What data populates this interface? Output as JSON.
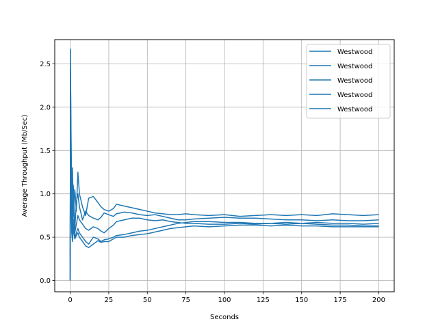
{
  "chart_data": {
    "type": "line",
    "title": "",
    "xlabel": "Seconds",
    "ylabel": "Average Throughput (Mb/Sec)",
    "xlim": [
      -10,
      210
    ],
    "ylim": [
      -0.13,
      2.78
    ],
    "xticks": [
      0,
      25,
      50,
      75,
      100,
      125,
      150,
      175,
      200
    ],
    "yticks": [
      0.0,
      0.5,
      1.0,
      1.5,
      2.0,
      2.5
    ],
    "grid": true,
    "legend_position": "top-right",
    "line_color": "#1f77b4",
    "series": [
      {
        "name": "Westwood",
        "x": [
          0,
          0.2,
          0.5,
          1,
          1.5,
          2,
          3,
          4,
          5,
          6,
          8,
          10,
          12,
          15,
          18,
          20,
          22,
          25,
          28,
          30,
          35,
          40,
          45,
          50,
          55,
          60,
          65,
          70,
          75,
          80,
          90,
          100,
          110,
          120,
          130,
          140,
          150,
          160,
          170,
          180,
          190,
          200
        ],
        "y": [
          0.0,
          2.67,
          1.6,
          0.9,
          1.3,
          0.75,
          1.05,
          0.8,
          1.25,
          1.0,
          0.85,
          0.75,
          0.95,
          0.97,
          0.9,
          0.85,
          0.82,
          0.8,
          0.83,
          0.88,
          0.86,
          0.84,
          0.82,
          0.8,
          0.78,
          0.77,
          0.76,
          0.76,
          0.77,
          0.76,
          0.75,
          0.76,
          0.74,
          0.75,
          0.76,
          0.75,
          0.76,
          0.75,
          0.77,
          0.76,
          0.75,
          0.76
        ]
      },
      {
        "name": "Westwood",
        "x": [
          0,
          0.2,
          0.5,
          1,
          1.5,
          2,
          3,
          4,
          5,
          6,
          8,
          10,
          12,
          15,
          18,
          20,
          22,
          25,
          28,
          30,
          35,
          40,
          45,
          50,
          55,
          60,
          65,
          70,
          75,
          80,
          90,
          100,
          110,
          120,
          130,
          140,
          150,
          160,
          170,
          180,
          190,
          200
        ],
        "y": [
          0.0,
          2.43,
          1.8,
          1.0,
          0.7,
          1.1,
          0.6,
          0.9,
          1.0,
          0.85,
          0.7,
          0.8,
          0.75,
          0.72,
          0.7,
          0.73,
          0.78,
          0.76,
          0.74,
          0.77,
          0.79,
          0.78,
          0.76,
          0.75,
          0.76,
          0.74,
          0.72,
          0.7,
          0.7,
          0.71,
          0.72,
          0.73,
          0.72,
          0.72,
          0.71,
          0.7,
          0.7,
          0.69,
          0.7,
          0.69,
          0.69,
          0.7
        ]
      },
      {
        "name": "Westwood",
        "x": [
          0,
          0.2,
          0.5,
          1,
          1.5,
          2,
          3,
          4,
          5,
          6,
          8,
          10,
          12,
          15,
          18,
          20,
          22,
          25,
          28,
          30,
          35,
          40,
          45,
          50,
          55,
          60,
          65,
          70,
          75,
          80,
          90,
          100,
          110,
          120,
          130,
          140,
          150,
          160,
          170,
          180,
          190,
          200
        ],
        "y": [
          0.0,
          2.2,
          1.5,
          0.8,
          0.6,
          0.9,
          0.55,
          0.65,
          0.75,
          0.7,
          0.65,
          0.6,
          0.58,
          0.62,
          0.6,
          0.57,
          0.55,
          0.6,
          0.64,
          0.68,
          0.7,
          0.72,
          0.72,
          0.7,
          0.69,
          0.7,
          0.68,
          0.67,
          0.66,
          0.66,
          0.65,
          0.65,
          0.66,
          0.65,
          0.66,
          0.67,
          0.66,
          0.67,
          0.66,
          0.66,
          0.65,
          0.66
        ]
      },
      {
        "name": "Westwood",
        "x": [
          0,
          0.2,
          0.5,
          1,
          1.5,
          2,
          3,
          4,
          5,
          6,
          8,
          10,
          12,
          15,
          18,
          20,
          22,
          25,
          28,
          30,
          35,
          40,
          45,
          50,
          55,
          60,
          65,
          70,
          75,
          80,
          90,
          100,
          110,
          120,
          130,
          140,
          150,
          160,
          170,
          180,
          190,
          200
        ],
        "y": [
          0.3,
          1.9,
          1.2,
          0.6,
          0.5,
          0.7,
          0.5,
          0.55,
          0.6,
          0.55,
          0.5,
          0.45,
          0.42,
          0.5,
          0.48,
          0.45,
          0.47,
          0.48,
          0.5,
          0.52,
          0.53,
          0.55,
          0.57,
          0.58,
          0.6,
          0.62,
          0.64,
          0.66,
          0.67,
          0.68,
          0.68,
          0.67,
          0.67,
          0.66,
          0.66,
          0.65,
          0.66,
          0.65,
          0.64,
          0.64,
          0.63,
          0.63
        ]
      },
      {
        "name": "Westwood",
        "x": [
          0,
          0.2,
          0.5,
          1,
          1.5,
          2,
          3,
          4,
          5,
          6,
          8,
          10,
          12,
          15,
          18,
          20,
          22,
          25,
          28,
          30,
          35,
          40,
          45,
          50,
          55,
          60,
          65,
          70,
          75,
          80,
          90,
          100,
          110,
          120,
          130,
          140,
          150,
          160,
          170,
          180,
          190,
          200
        ],
        "y": [
          0.2,
          1.6,
          1.0,
          0.55,
          0.45,
          0.6,
          0.48,
          0.52,
          0.55,
          0.5,
          0.45,
          0.4,
          0.38,
          0.42,
          0.46,
          0.44,
          0.45,
          0.45,
          0.48,
          0.5,
          0.5,
          0.52,
          0.53,
          0.54,
          0.56,
          0.58,
          0.6,
          0.61,
          0.62,
          0.63,
          0.62,
          0.63,
          0.64,
          0.64,
          0.63,
          0.64,
          0.63,
          0.63,
          0.62,
          0.62,
          0.62,
          0.62
        ]
      }
    ]
  }
}
